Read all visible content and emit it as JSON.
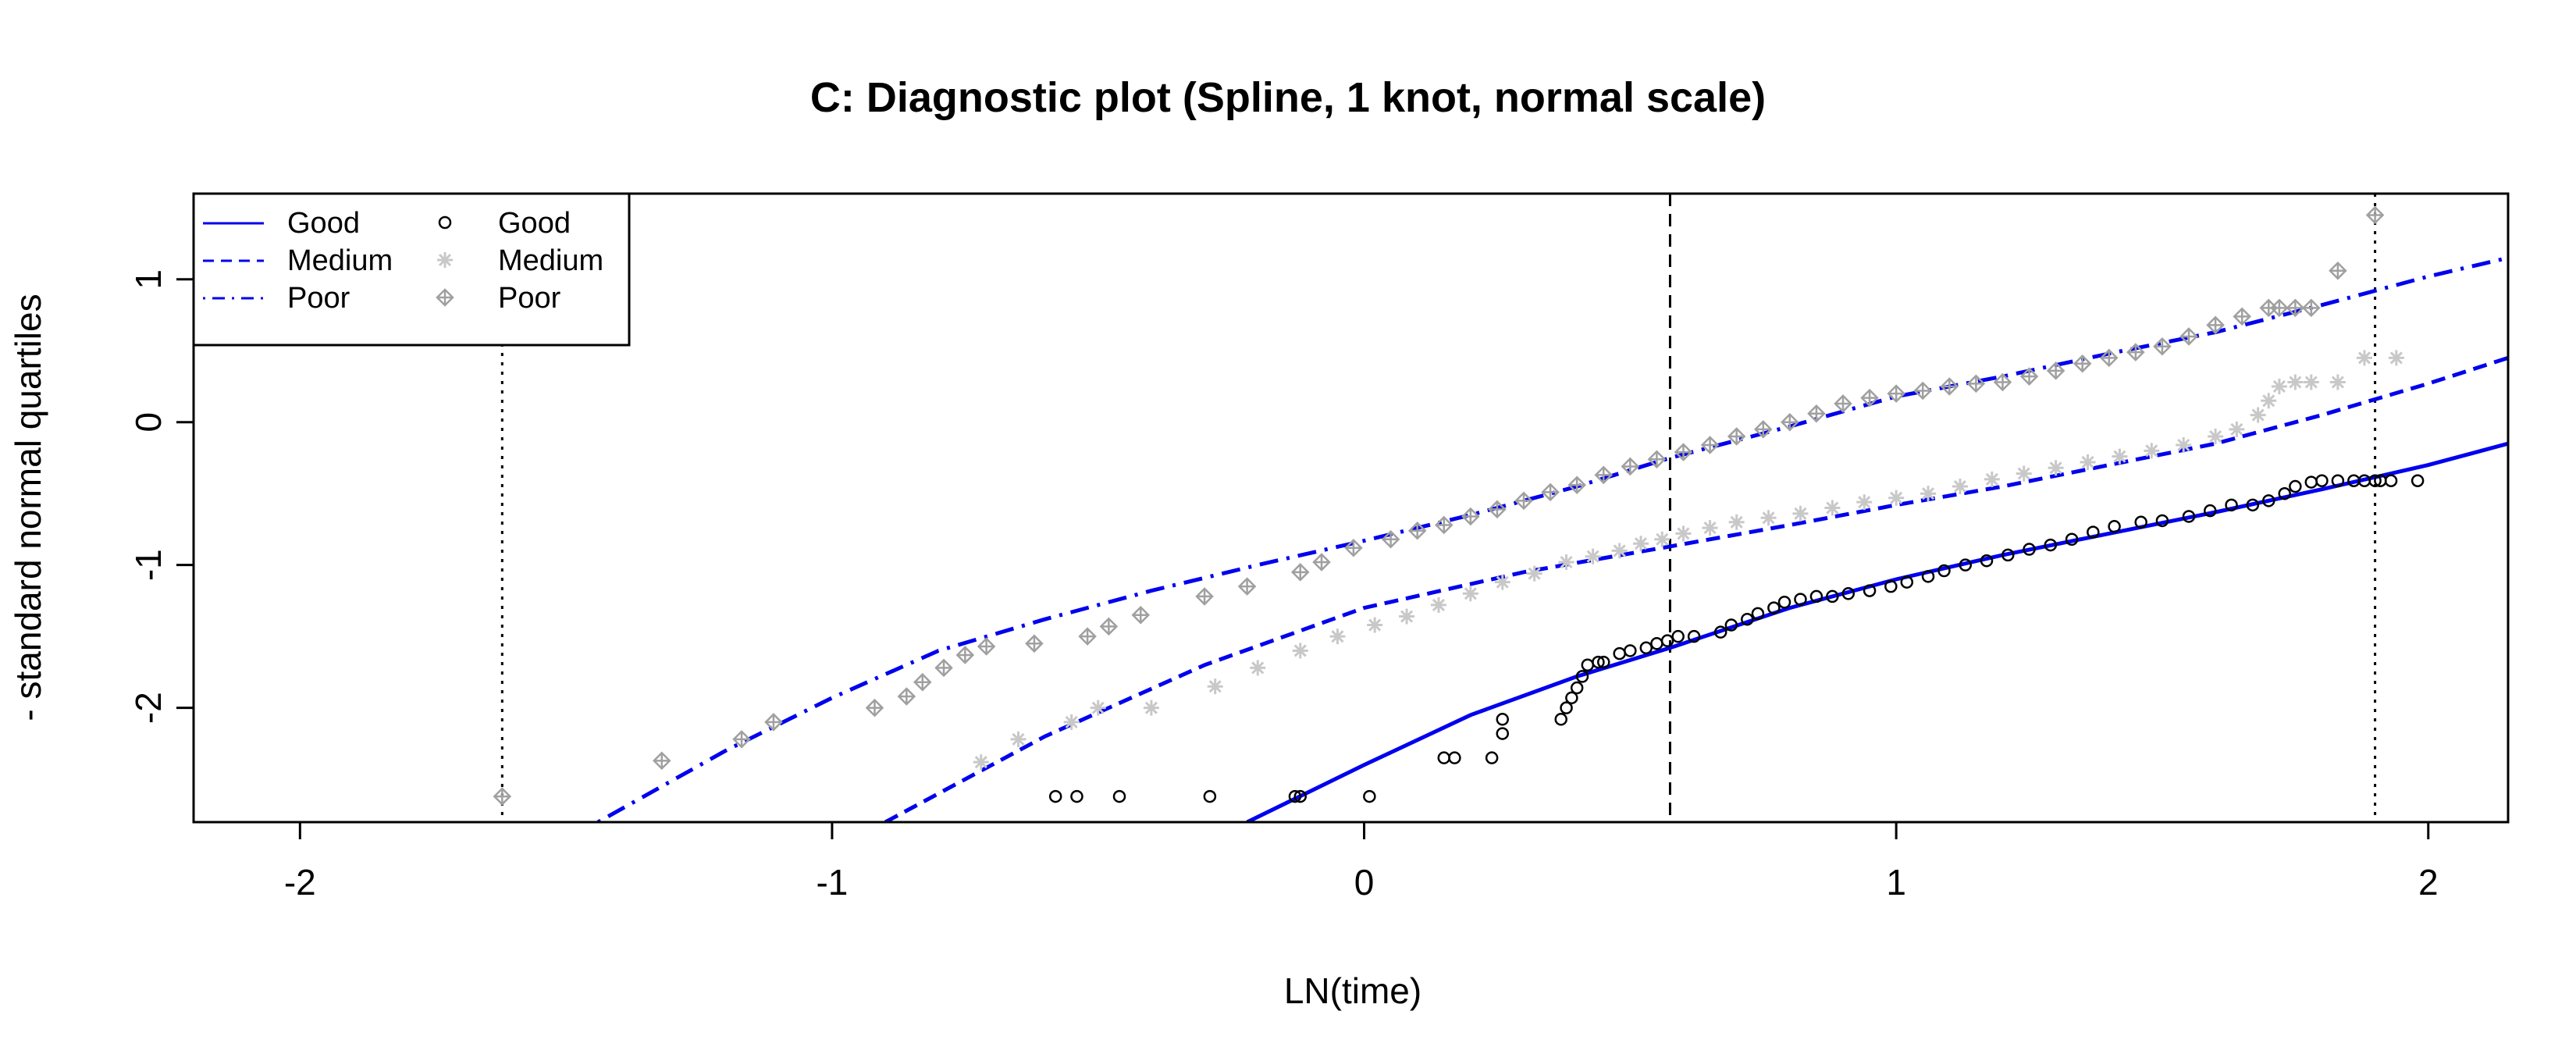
{
  "chart_data": {
    "type": "scatter",
    "title": "C: Diagnostic plot (Spline, 1 knot, normal scale)",
    "xlabel": "LN(time)",
    "ylabel": "- standard normal quartiles",
    "xlim": [
      -2.2,
      2.15
    ],
    "ylim": [
      -2.8,
      1.6
    ],
    "x_ticks": [
      -2,
      -1,
      0,
      1,
      2
    ],
    "x_tick_labels": [
      "-2",
      "-1",
      "0",
      "1",
      "2"
    ],
    "y_ticks": [
      -2,
      -1,
      0,
      1
    ],
    "y_tick_labels": [
      "-2",
      "-1",
      "0",
      "1"
    ],
    "grid": false,
    "legend_position": "top-left",
    "legend": {
      "lines": [
        "Good",
        "Medium",
        "Poor"
      ],
      "points": [
        "Good",
        "Medium",
        "Poor"
      ]
    },
    "reference_lines": [
      {
        "x": -1.62,
        "style": "dotted"
      },
      {
        "x": 0.575,
        "style": "dashed"
      },
      {
        "x": 1.9,
        "style": "dotted"
      }
    ],
    "fitted_curves": [
      {
        "name": "Good",
        "style": "solid",
        "color": "#0000EE",
        "x": [
          -0.22,
          0,
          0.2,
          0.4,
          0.575,
          0.8,
          1.0,
          1.2,
          1.4,
          1.6,
          1.8,
          2.0,
          2.15
        ],
        "y": [
          -2.8,
          -2.4,
          -2.05,
          -1.78,
          -1.58,
          -1.3,
          -1.1,
          -0.93,
          -0.78,
          -0.63,
          -0.47,
          -0.3,
          -0.15
        ]
      },
      {
        "name": "Medium",
        "style": "dashed",
        "color": "#0000EE",
        "x": [
          -0.9,
          -0.6,
          -0.3,
          0,
          0.3,
          0.575,
          0.8,
          1.0,
          1.2,
          1.4,
          1.6,
          1.8,
          2.0,
          2.15
        ],
        "y": [
          -2.8,
          -2.2,
          -1.7,
          -1.3,
          -1.05,
          -0.87,
          -0.72,
          -0.58,
          -0.45,
          -0.3,
          -0.15,
          0.05,
          0.27,
          0.45
        ]
      },
      {
        "name": "Poor",
        "style": "dotdash",
        "color": "#0000EE",
        "x": [
          -1.44,
          -1.2,
          -1.0,
          -0.8,
          -0.6,
          -0.4,
          -0.2,
          0,
          0.2,
          0.4,
          0.575,
          0.8,
          1.0,
          1.2,
          1.4,
          1.6,
          1.8,
          2.0,
          2.15
        ],
        "y": [
          -2.8,
          -2.3,
          -1.93,
          -1.6,
          -1.38,
          -1.18,
          -1.0,
          -0.83,
          -0.65,
          -0.45,
          -0.25,
          -0.03,
          0.18,
          0.32,
          0.48,
          0.63,
          0.82,
          1.02,
          1.15
        ]
      }
    ],
    "series": [
      {
        "name": "Good",
        "marker": "circle",
        "color": "#000000",
        "x": [
          -0.58,
          -0.54,
          -0.46,
          -0.29,
          -0.13,
          -0.12,
          0.01,
          0.15,
          0.17,
          0.24,
          0.26,
          0.26,
          0.37,
          0.38,
          0.39,
          0.4,
          0.41,
          0.42,
          0.44,
          0.45,
          0.48,
          0.5,
          0.53,
          0.55,
          0.57,
          0.59,
          0.62,
          0.67,
          0.69,
          0.72,
          0.74,
          0.77,
          0.79,
          0.82,
          0.85,
          0.88,
          0.91,
          0.95,
          0.99,
          1.02,
          1.06,
          1.09,
          1.13,
          1.17,
          1.21,
          1.25,
          1.29,
          1.33,
          1.37,
          1.41,
          1.46,
          1.5,
          1.55,
          1.59,
          1.63,
          1.67,
          1.7,
          1.73,
          1.75,
          1.78,
          1.8,
          1.83,
          1.86,
          1.88,
          1.9,
          1.91,
          1.93,
          1.98
        ],
        "y": [
          -2.62,
          -2.62,
          -2.62,
          -2.62,
          -2.62,
          -2.62,
          -2.62,
          -2.35,
          -2.35,
          -2.35,
          -2.08,
          -2.18,
          -2.08,
          -2.0,
          -1.93,
          -1.86,
          -1.78,
          -1.7,
          -1.68,
          -1.68,
          -1.62,
          -1.6,
          -1.58,
          -1.55,
          -1.53,
          -1.5,
          -1.5,
          -1.47,
          -1.42,
          -1.38,
          -1.34,
          -1.3,
          -1.26,
          -1.24,
          -1.22,
          -1.22,
          -1.2,
          -1.18,
          -1.15,
          -1.12,
          -1.08,
          -1.04,
          -1.0,
          -0.97,
          -0.93,
          -0.89,
          -0.86,
          -0.82,
          -0.77,
          -0.73,
          -0.7,
          -0.69,
          -0.66,
          -0.62,
          -0.58,
          -0.58,
          -0.55,
          -0.5,
          -0.45,
          -0.42,
          -0.41,
          -0.41,
          -0.41,
          -0.41,
          -0.41,
          -0.41,
          -0.41,
          -0.41
        ]
      },
      {
        "name": "Medium",
        "marker": "asterisk",
        "color": "#C8C8C8",
        "x": [
          -0.72,
          -0.65,
          -0.55,
          -0.5,
          -0.4,
          -0.28,
          -0.2,
          -0.12,
          -0.05,
          0.02,
          0.08,
          0.14,
          0.2,
          0.26,
          0.32,
          0.38,
          0.43,
          0.48,
          0.52,
          0.56,
          0.6,
          0.65,
          0.7,
          0.76,
          0.82,
          0.88,
          0.94,
          1.0,
          1.06,
          1.12,
          1.18,
          1.24,
          1.3,
          1.36,
          1.42,
          1.48,
          1.54,
          1.6,
          1.64,
          1.68,
          1.7,
          1.72,
          1.75,
          1.78,
          1.83,
          1.88,
          1.94
        ],
        "y": [
          -2.38,
          -2.22,
          -2.1,
          -2.0,
          -2.0,
          -1.85,
          -1.72,
          -1.6,
          -1.5,
          -1.42,
          -1.36,
          -1.28,
          -1.2,
          -1.12,
          -1.06,
          -0.98,
          -0.94,
          -0.9,
          -0.85,
          -0.82,
          -0.78,
          -0.74,
          -0.7,
          -0.67,
          -0.64,
          -0.6,
          -0.56,
          -0.53,
          -0.5,
          -0.45,
          -0.4,
          -0.36,
          -0.32,
          -0.28,
          -0.24,
          -0.2,
          -0.16,
          -0.1,
          -0.05,
          0.05,
          0.15,
          0.25,
          0.28,
          0.28,
          0.28,
          0.45,
          0.45
        ]
      },
      {
        "name": "Poor",
        "marker": "diamond",
        "color": "#A0A0A0",
        "x": [
          -1.62,
          -1.32,
          -1.17,
          -1.11,
          -0.92,
          -0.86,
          -0.83,
          -0.79,
          -0.75,
          -0.71,
          -0.62,
          -0.52,
          -0.48,
          -0.42,
          -0.3,
          -0.22,
          -0.12,
          -0.08,
          -0.02,
          0.05,
          0.1,
          0.15,
          0.2,
          0.25,
          0.3,
          0.35,
          0.4,
          0.45,
          0.5,
          0.55,
          0.6,
          0.65,
          0.7,
          0.75,
          0.8,
          0.85,
          0.9,
          0.95,
          1.0,
          1.05,
          1.1,
          1.15,
          1.2,
          1.25,
          1.3,
          1.35,
          1.4,
          1.45,
          1.5,
          1.55,
          1.6,
          1.65,
          1.7,
          1.72,
          1.75,
          1.78,
          1.83,
          1.9
        ],
        "y": [
          -2.62,
          -2.37,
          -2.22,
          -2.1,
          -2.0,
          -1.92,
          -1.82,
          -1.72,
          -1.63,
          -1.57,
          -1.55,
          -1.5,
          -1.43,
          -1.35,
          -1.22,
          -1.15,
          -1.05,
          -0.98,
          -0.88,
          -0.82,
          -0.76,
          -0.72,
          -0.66,
          -0.61,
          -0.55,
          -0.49,
          -0.44,
          -0.37,
          -0.31,
          -0.26,
          -0.21,
          -0.16,
          -0.1,
          -0.05,
          0.0,
          0.06,
          0.13,
          0.17,
          0.2,
          0.22,
          0.25,
          0.27,
          0.28,
          0.32,
          0.36,
          0.41,
          0.45,
          0.49,
          0.53,
          0.6,
          0.68,
          0.74,
          0.8,
          0.8,
          0.8,
          0.8,
          1.06,
          1.45
        ]
      }
    ]
  }
}
